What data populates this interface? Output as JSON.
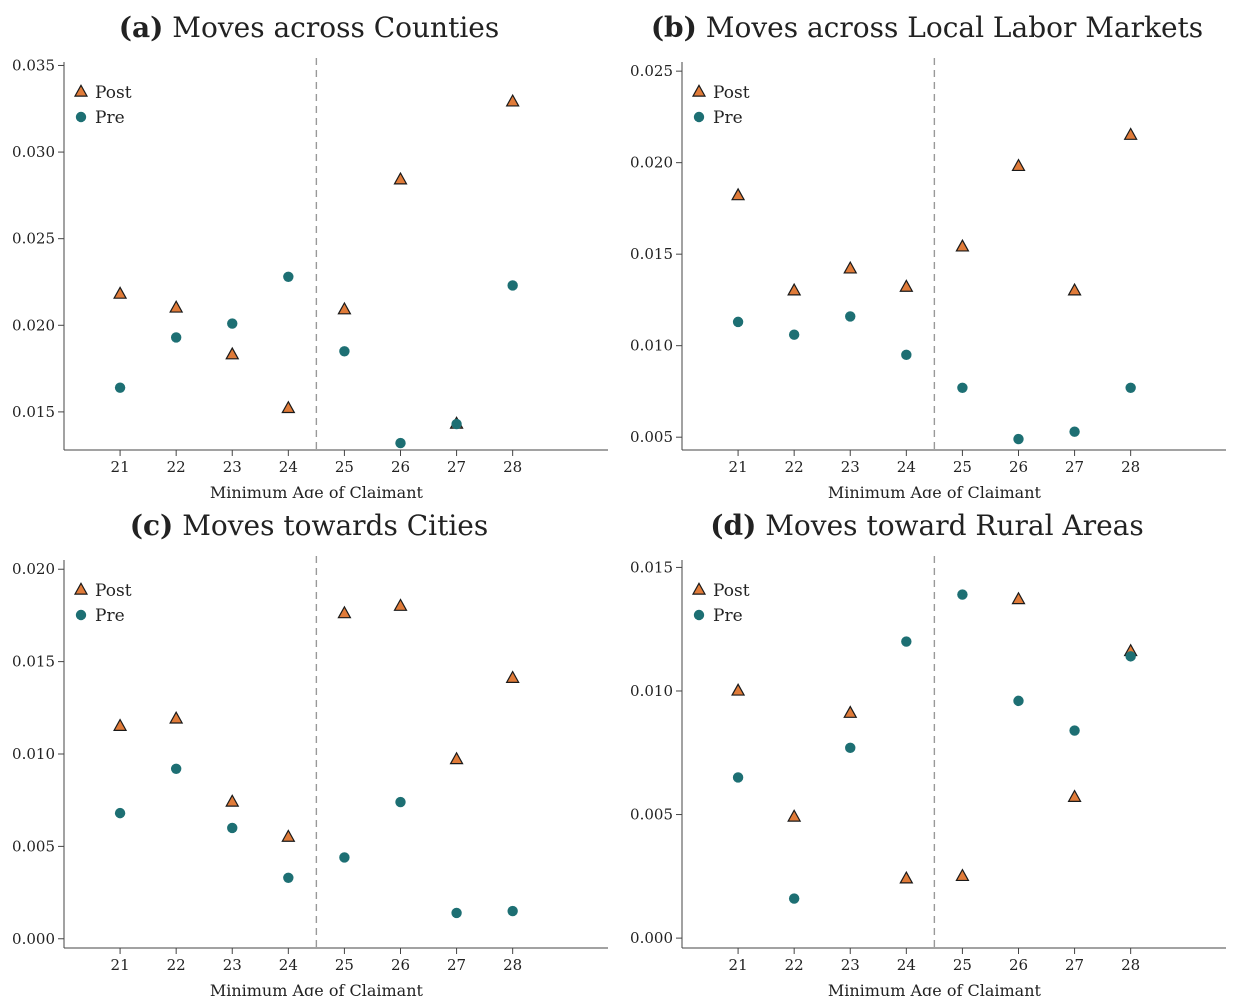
{
  "colors": {
    "post": "#e07b39",
    "pre": "#1d6f73",
    "marker_edge": "#1a1a1a",
    "cutoff_line": "#999999"
  },
  "chart_data": [
    {
      "type": "scatter",
      "tag": "(a)",
      "title": "Moves across Counties",
      "xlabel": "Minimum Age of Claimant",
      "x": [
        21,
        22,
        23,
        24,
        25,
        26,
        27,
        28
      ],
      "xlim": [
        20,
        29.7
      ],
      "ylim": [
        0.0128,
        0.0352
      ],
      "yticks": [
        "0.015",
        "0.020",
        "0.025",
        "0.030",
        "0.035"
      ],
      "cutoff_x": 24.5,
      "legend_position": "top-left",
      "series": [
        {
          "name": "Post",
          "marker": "triangle",
          "values": [
            0.0218,
            0.021,
            0.0183,
            0.0152,
            0.0209,
            0.0284,
            0.0143,
            0.0329
          ]
        },
        {
          "name": "Pre",
          "marker": "circle",
          "values": [
            0.0164,
            0.0193,
            0.0201,
            0.0228,
            0.0185,
            0.0132,
            0.0143,
            0.0223
          ]
        }
      ]
    },
    {
      "type": "scatter",
      "tag": "(b)",
      "title": "Moves across Local Labor Markets",
      "xlabel": "Minimum Age of Claimant",
      "x": [
        21,
        22,
        23,
        24,
        25,
        26,
        27,
        28
      ],
      "xlim": [
        20,
        29.7
      ],
      "ylim": [
        0.0043,
        0.0255
      ],
      "yticks": [
        "0.005",
        "0.010",
        "0.015",
        "0.020",
        "0.025"
      ],
      "cutoff_x": 24.5,
      "legend_position": "top-left",
      "series": [
        {
          "name": "Post",
          "marker": "triangle",
          "values": [
            0.0182,
            0.013,
            0.0142,
            0.0132,
            0.0154,
            0.0198,
            0.013,
            0.0215
          ]
        },
        {
          "name": "Pre",
          "marker": "circle",
          "values": [
            0.0113,
            0.0106,
            0.0116,
            0.0095,
            0.0077,
            0.0049,
            0.0053,
            0.0077
          ]
        }
      ]
    },
    {
      "type": "scatter",
      "tag": "(c)",
      "title": "Moves towards Cities",
      "xlabel": "Minimum Age of Claimant",
      "x": [
        21,
        22,
        23,
        24,
        25,
        26,
        27,
        28
      ],
      "xlim": [
        20,
        29.7
      ],
      "ylim": [
        -0.0005,
        0.0205
      ],
      "yticks": [
        "0.000",
        "0.005",
        "0.010",
        "0.015",
        "0.020"
      ],
      "cutoff_x": 24.5,
      "legend_position": "top-left",
      "series": [
        {
          "name": "Post",
          "marker": "triangle",
          "values": [
            0.0115,
            0.0119,
            0.0074,
            0.0055,
            0.0176,
            0.018,
            0.0097,
            0.0141
          ]
        },
        {
          "name": "Pre",
          "marker": "circle",
          "values": [
            0.0068,
            0.0092,
            0.006,
            0.0033,
            0.0044,
            0.0074,
            0.0014,
            0.0015
          ]
        }
      ]
    },
    {
      "type": "scatter",
      "tag": "(d)",
      "title": "Moves toward Rural Areas",
      "xlabel": "Minimum Age of Claimant",
      "x": [
        21,
        22,
        23,
        24,
        25,
        26,
        27,
        28
      ],
      "xlim": [
        20,
        29.7
      ],
      "ylim": [
        -0.0004,
        0.0153
      ],
      "yticks": [
        "0.000",
        "0.005",
        "0.010",
        "0.015"
      ],
      "cutoff_x": 24.5,
      "legend_position": "top-left",
      "series": [
        {
          "name": "Post",
          "marker": "triangle",
          "values": [
            0.01,
            0.0049,
            0.0091,
            0.0024,
            0.0025,
            0.0137,
            0.0057,
            0.0116
          ]
        },
        {
          "name": "Pre",
          "marker": "circle",
          "values": [
            0.0065,
            0.0016,
            0.0077,
            0.012,
            0.0139,
            0.0096,
            0.0084,
            0.0114
          ]
        }
      ]
    }
  ]
}
